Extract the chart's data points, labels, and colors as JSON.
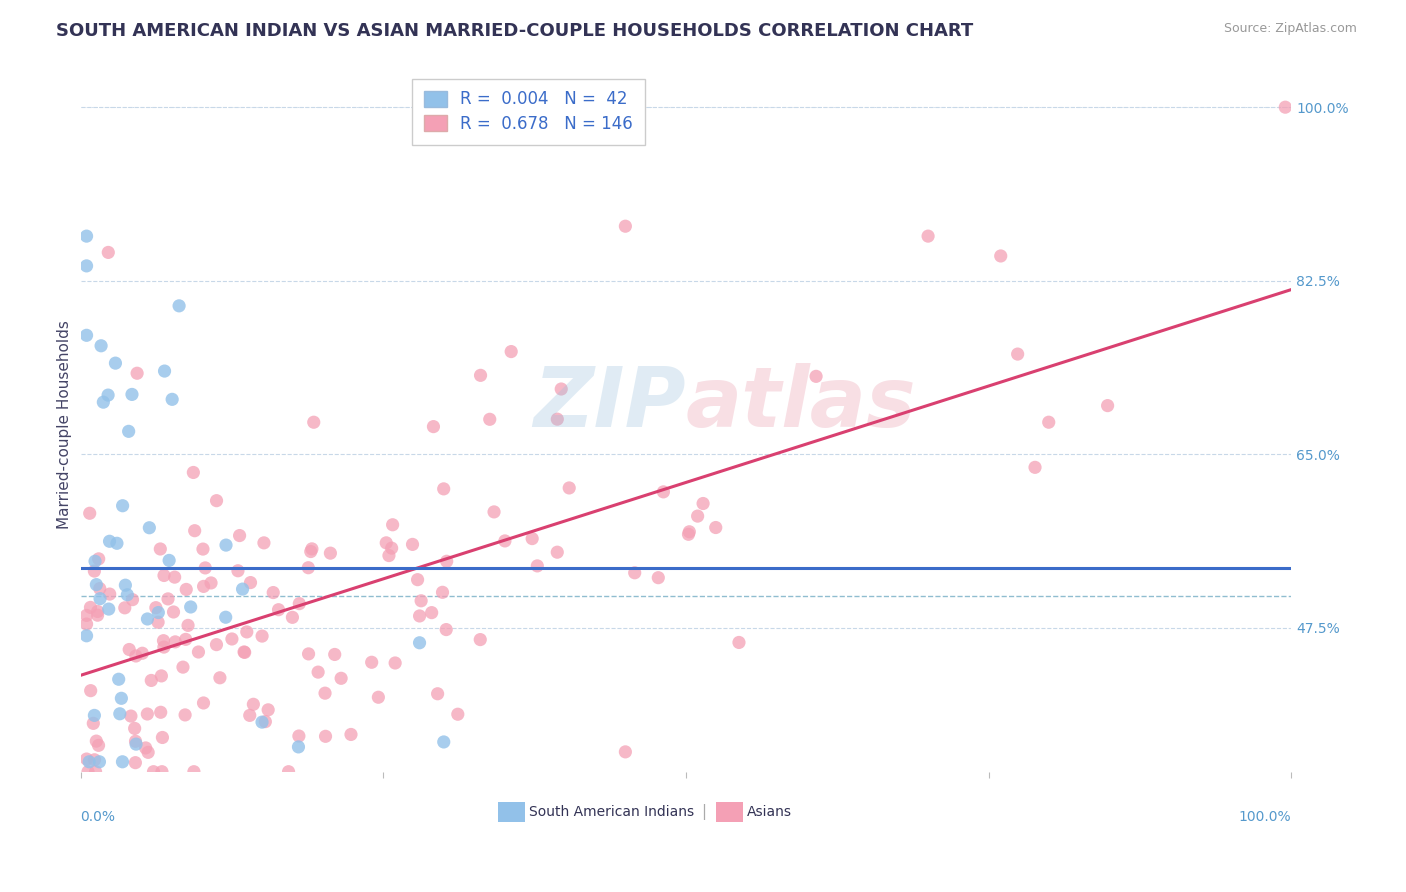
{
  "title": "SOUTH AMERICAN INDIAN VS ASIAN MARRIED-COUPLE HOUSEHOLDS CORRELATION CHART",
  "source": "Source: ZipAtlas.com",
  "ylabel": "Married-couple Households",
  "xlim": [
    0,
    100
  ],
  "ylim": [
    33,
    103
  ],
  "yticks": [
    47.5,
    65.0,
    82.5,
    100.0
  ],
  "blue_R": 0.004,
  "blue_N": 42,
  "pink_R": 0.678,
  "pink_N": 146,
  "blue_color": "#92C1E9",
  "pink_color": "#F4A0B5",
  "blue_line_color": "#3B6CC9",
  "pink_line_color": "#D94070",
  "dashed_line_color": "#90BDD0",
  "background_color": "#FFFFFF",
  "grid_color": "#C8D8E8",
  "title_color": "#333355",
  "source_color": "#999999",
  "axis_label_color": "#5599CC",
  "legend_label1": "South American Indians",
  "legend_label2": "Asians",
  "watermark_color_blue": "#99C0DD",
  "watermark_color_red": "#E896A8",
  "title_fontsize": 13,
  "source_fontsize": 9,
  "ylabel_fontsize": 11,
  "axis_tick_fontsize": 10,
  "legend_fontsize": 12,
  "blue_line_y_start": 53.5,
  "blue_line_y_end": 53.5,
  "pink_line_y_start": 44.0,
  "pink_line_y_end": 73.0
}
